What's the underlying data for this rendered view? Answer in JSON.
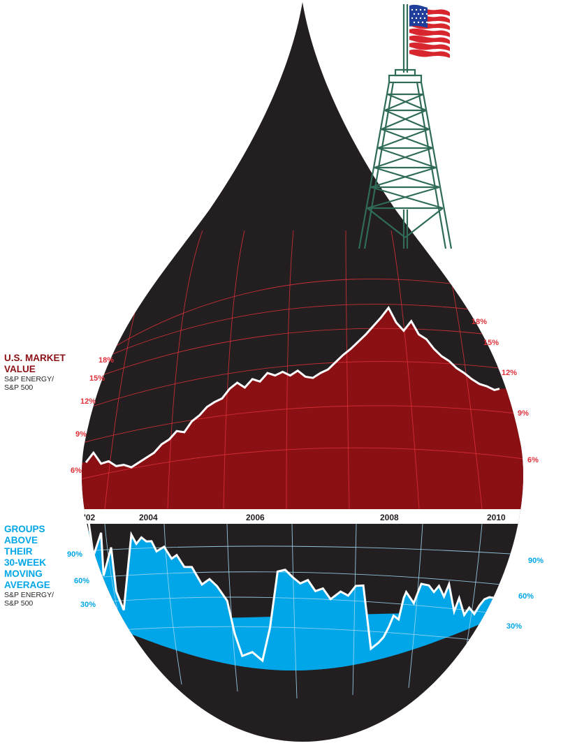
{
  "colors": {
    "drop": "#231f20",
    "market_fill": "#8b1014",
    "market_grid": "#e0313a",
    "market_label": "#e0313a",
    "groups_fill": "#00a6e8",
    "groups_grid": "#9fd6ef",
    "groups_label": "#00a6e8",
    "line": "#ffffff",
    "rig": "#2f6b57",
    "flag_red": "#d7262e",
    "flag_blue": "#1f3d9b"
  },
  "icons": {
    "flag": "us-flag-icon",
    "rig": "oil-derrick-icon"
  },
  "market": {
    "title": "U.S. MARKET VALUE",
    "subtitle_1": "S&P ENERGY/",
    "subtitle_2": "S&P 500",
    "left_ticks": [
      "18%",
      "15%",
      "12%",
      "9%",
      "6%"
    ],
    "right_ticks": [
      "18%",
      "15%",
      "12%",
      "9%",
      "6%"
    ]
  },
  "groups": {
    "title_lines": [
      "GROUPS",
      "ABOVE",
      "THEIR",
      "30-WEEK",
      "MOVING",
      "AVERAGE"
    ],
    "subtitle_1": "S&P ENERGY/",
    "subtitle_2": "S&P 500",
    "left_ticks": [
      "90%",
      "60%",
      "30%"
    ],
    "right_ticks": [
      "90%",
      "60%",
      "30%"
    ]
  },
  "years": [
    "'02",
    "2004",
    "2006",
    "2008",
    "2010"
  ],
  "chart_data": [
    {
      "type": "area",
      "title": "U.S. MARKET VALUE",
      "ylabel": "S&P ENERGY/ S&P 500",
      "unit": "%",
      "ylim": [
        4,
        20
      ],
      "x_range": [
        2002.0,
        2010.3
      ],
      "x_ticks": [
        "'02",
        "2004",
        "2006",
        "2008",
        "2010"
      ],
      "y_ticks": [
        6,
        9,
        12,
        15,
        18
      ],
      "grid": true,
      "x": [
        2002.0,
        2002.15,
        2002.3,
        2002.45,
        2002.6,
        2002.75,
        2002.9,
        2003.05,
        2003.2,
        2003.35,
        2003.5,
        2003.65,
        2003.8,
        2003.95,
        2004.1,
        2004.25,
        2004.4,
        2004.55,
        2004.7,
        2004.85,
        2005.0,
        2005.15,
        2005.3,
        2005.45,
        2005.6,
        2005.75,
        2005.9,
        2006.05,
        2006.2,
        2006.35,
        2006.5,
        2006.65,
        2006.8,
        2006.95,
        2007.1,
        2007.25,
        2007.4,
        2007.55,
        2007.7,
        2007.85,
        2008.0,
        2008.15,
        2008.3,
        2008.45,
        2008.6,
        2008.75,
        2008.9,
        2009.05,
        2009.2,
        2009.35,
        2009.5,
        2009.65,
        2009.8,
        2009.95,
        2010.1,
        2010.2
      ],
      "values": [
        6.8,
        7.6,
        6.7,
        6.9,
        6.5,
        6.6,
        6.4,
        6.8,
        7.2,
        7.6,
        8.3,
        8.7,
        9.4,
        9.3,
        10.2,
        10.7,
        11.4,
        11.8,
        12.1,
        12.9,
        13.4,
        13.0,
        13.7,
        13.5,
        14.2,
        14.0,
        14.3,
        14.0,
        14.4,
        13.9,
        13.8,
        14.2,
        14.5,
        15.1,
        15.7,
        16.2,
        16.8,
        17.4,
        18.1,
        18.8,
        19.6,
        18.4,
        17.7,
        18.5,
        17.4,
        17.0,
        16.2,
        15.6,
        15.2,
        14.6,
        14.2,
        13.7,
        13.3,
        13.1,
        12.8,
        12.9
      ]
    },
    {
      "type": "area",
      "title": "GROUPS ABOVE THEIR 30-WEEK MOVING AVERAGE",
      "ylabel": "S&P ENERGY/ S&P 500",
      "unit": "%",
      "ylim": [
        0,
        100
      ],
      "x_range": [
        2002.0,
        2010.3
      ],
      "x_ticks": [
        "'02",
        "2004",
        "2006",
        "2008",
        "2010"
      ],
      "y_ticks": [
        30,
        60,
        90
      ],
      "grid": true,
      "x": [
        2002.05,
        2002.15,
        2002.3,
        2002.35,
        2002.5,
        2002.6,
        2002.75,
        2002.9,
        2003.0,
        2003.1,
        2003.2,
        2003.3,
        2003.4,
        2003.55,
        2003.7,
        2003.8,
        2003.95,
        2004.1,
        2004.3,
        2004.45,
        2004.6,
        2004.8,
        2004.95,
        2005.1,
        2005.3,
        2005.5,
        2005.65,
        2005.8,
        2005.95,
        2006.1,
        2006.25,
        2006.4,
        2006.55,
        2006.7,
        2006.85,
        2006.95,
        2007.05,
        2007.2,
        2007.35,
        2007.5,
        2007.65,
        2007.8,
        2007.9,
        2008.0,
        2008.1,
        2008.2,
        2008.3,
        2008.35,
        2008.5,
        2008.65,
        2008.8,
        2008.9,
        2009.0,
        2009.1,
        2009.2,
        2009.3,
        2009.4,
        2009.5,
        2009.6,
        2009.7,
        2009.8,
        2009.9,
        2010.0,
        2010.15
      ],
      "values": [
        92,
        60,
        85,
        45,
        75,
        35,
        20,
        95,
        88,
        96,
        94,
        96,
        88,
        95,
        86,
        91,
        82,
        84,
        70,
        77,
        72,
        60,
        30,
        10,
        15,
        8,
        40,
        94,
        96,
        89,
        83,
        86,
        75,
        77,
        66,
        69,
        72,
        67,
        75,
        74,
        12,
        16,
        20,
        28,
        38,
        33,
        52,
        57,
        44,
        60,
        56,
        48,
        52,
        40,
        50,
        22,
        33,
        15,
        20,
        12,
        18,
        22,
        22,
        18
      ]
    }
  ]
}
